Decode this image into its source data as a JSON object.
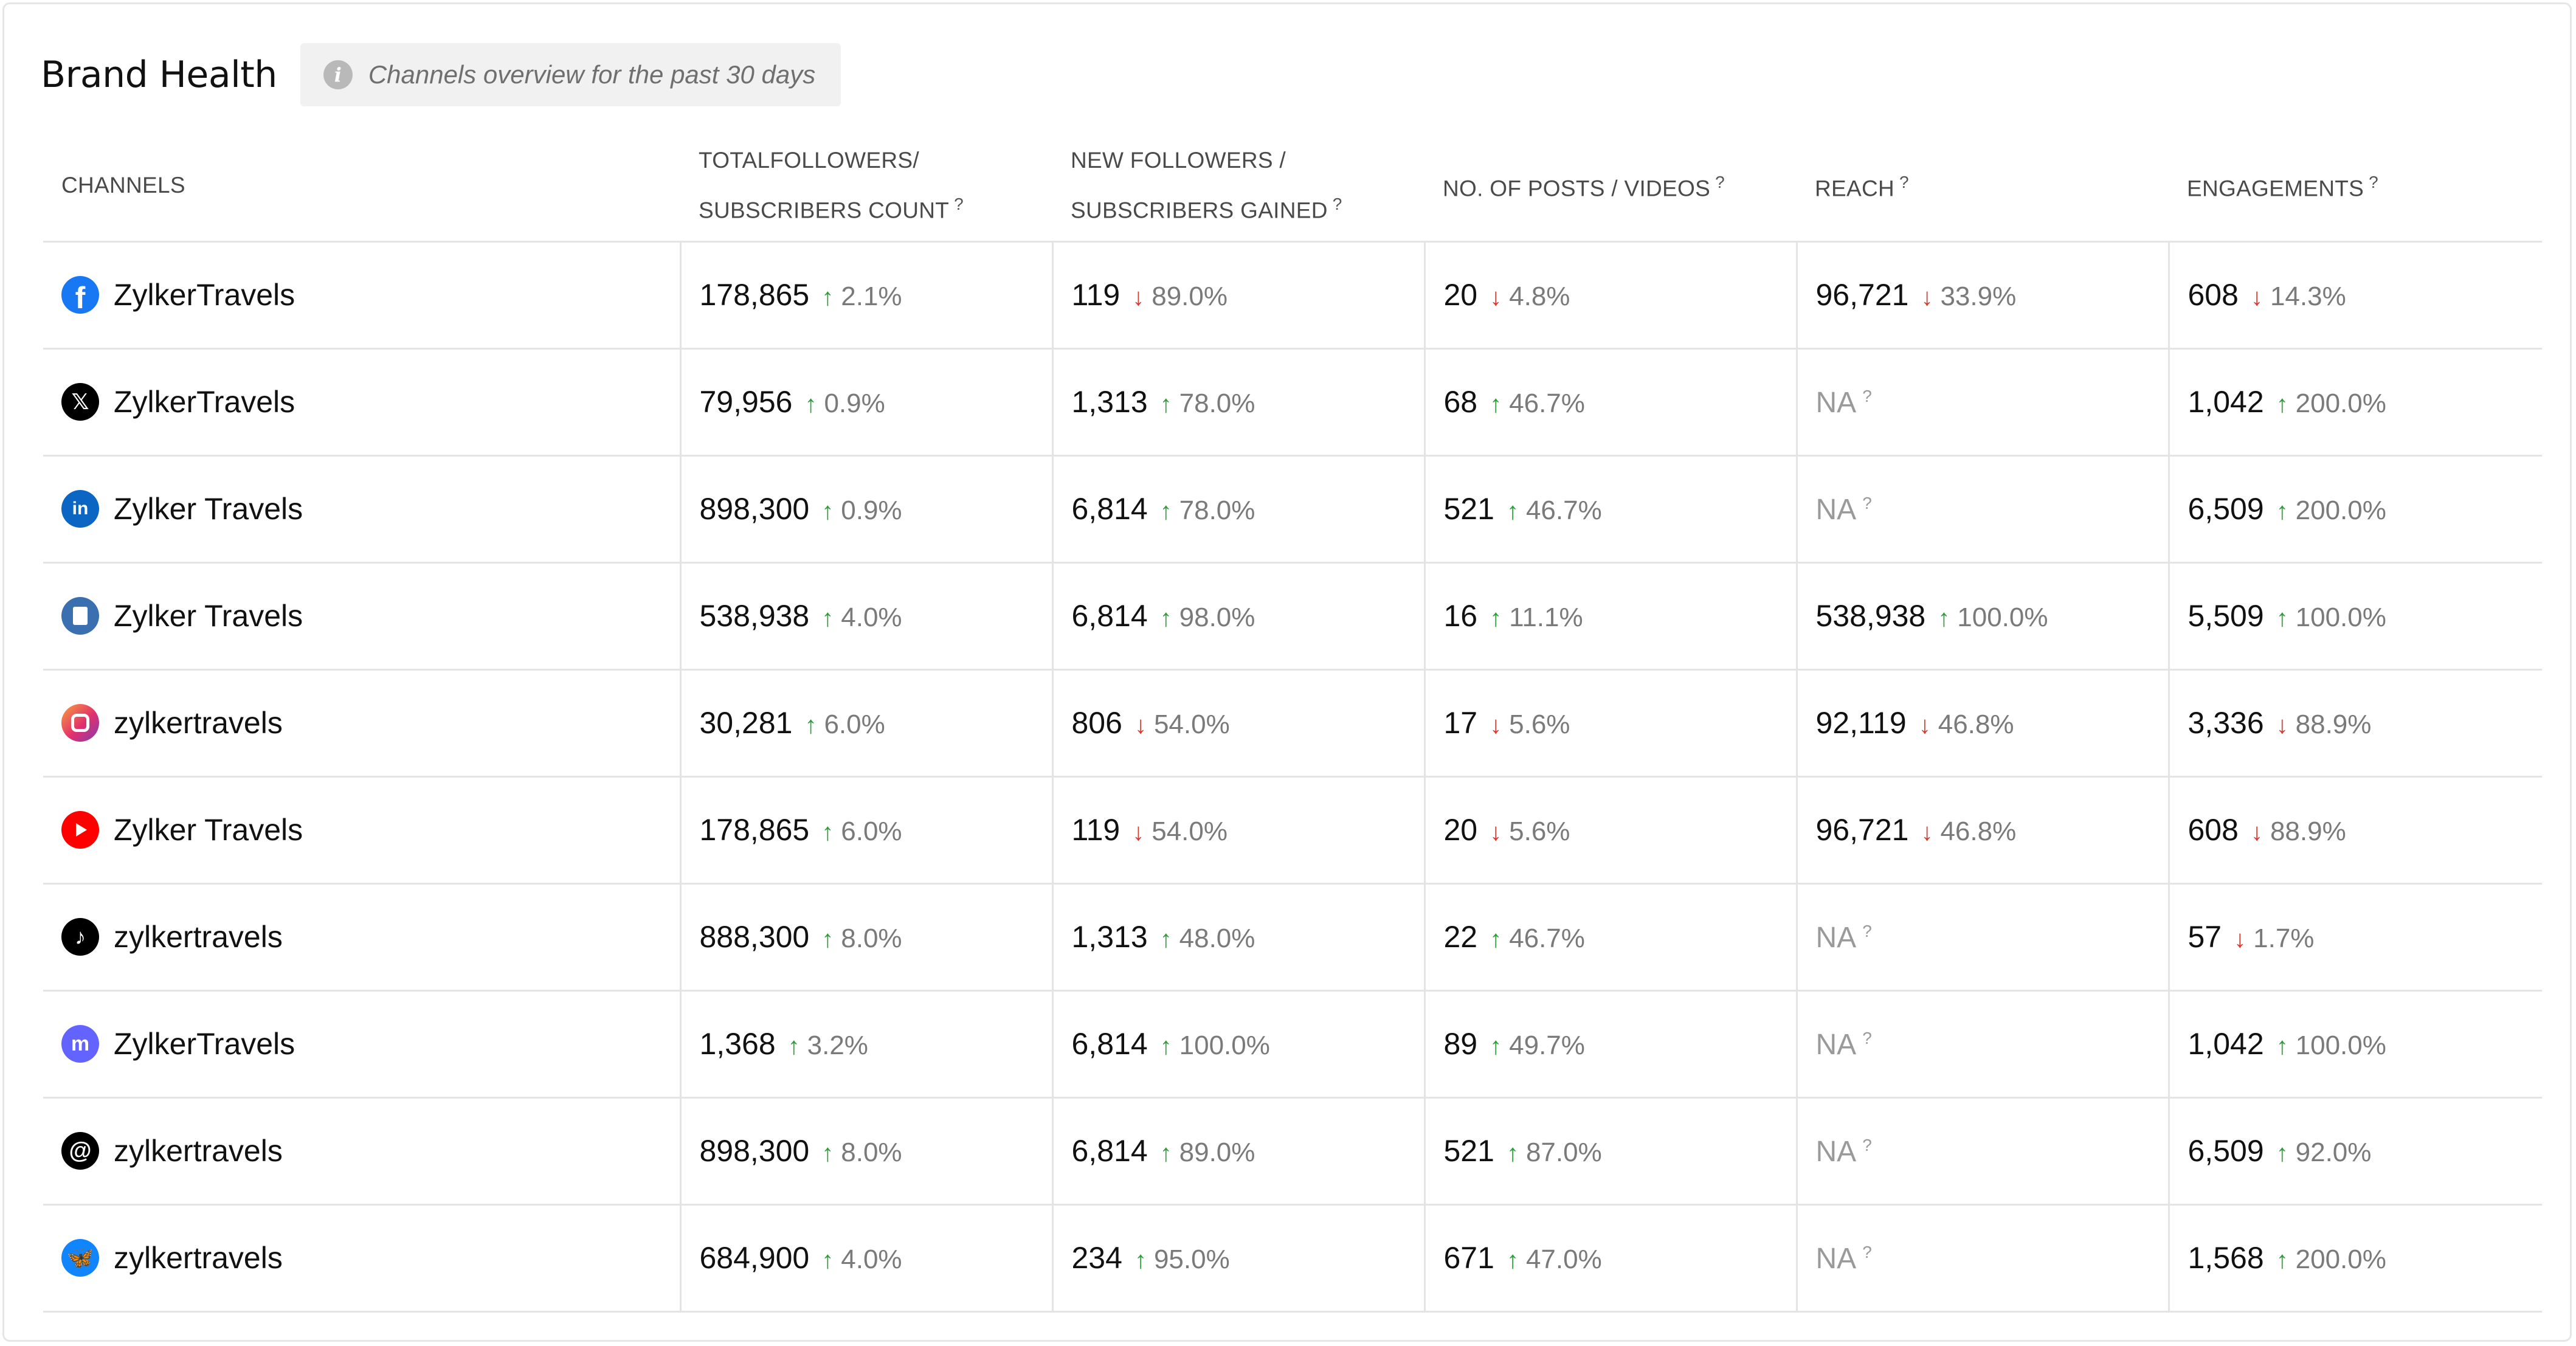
{
  "header": {
    "title": "Brand Health",
    "info": "Channels overview for the past 30 days"
  },
  "columns": [
    {
      "line1": "CHANNELS",
      "line2": ""
    },
    {
      "line1": "TOTALFOLLOWERS/",
      "line2": "SUBSCRIBERS COUNT",
      "help": "?"
    },
    {
      "line1": "NEW FOLLOWERS /",
      "line2": "SUBSCRIBERS GAINED",
      "help": "?"
    },
    {
      "line1": "NO. OF POSTS / VIDEOS",
      "line2": "",
      "help": "?"
    },
    {
      "line1": "REACH",
      "line2": "",
      "help": "?"
    },
    {
      "line1": "ENGAGEMENTS",
      "line2": "",
      "help": "?"
    }
  ],
  "icons": {
    "facebook": "facebook-icon",
    "x": "x-icon",
    "linkedin": "linkedin-icon",
    "gbp": "google-business-icon",
    "instagram": "instagram-icon",
    "youtube": "youtube-icon",
    "tiktok": "tiktok-icon",
    "mastodon": "mastodon-icon",
    "threads": "threads-icon",
    "bluesky": "bluesky-icon"
  },
  "colors": {
    "up": "#2e9e3a",
    "down": "#d63a2f",
    "na": "#9a9a9a"
  },
  "rows": [
    {
      "channel": "ZylkerTravels",
      "icon": "facebook",
      "followers": {
        "value": "178,865",
        "dir": "up",
        "pct": "2.1%"
      },
      "gained": {
        "value": "119",
        "dir": "down",
        "pct": "89.0%"
      },
      "posts": {
        "value": "20",
        "dir": "down",
        "pct": "4.8%"
      },
      "reach": {
        "value": "96,721",
        "dir": "down",
        "pct": "33.9%"
      },
      "engagements": {
        "value": "608",
        "dir": "down",
        "pct": "14.3%"
      }
    },
    {
      "channel": "ZylkerTravels",
      "icon": "x",
      "followers": {
        "value": "79,956",
        "dir": "up",
        "pct": "0.9%"
      },
      "gained": {
        "value": "1,313",
        "dir": "up",
        "pct": "78.0%"
      },
      "posts": {
        "value": "68",
        "dir": "up",
        "pct": "46.7%"
      },
      "reach": {
        "na": "NA"
      },
      "engagements": {
        "value": "1,042",
        "dir": "up",
        "pct": "200.0%"
      }
    },
    {
      "channel": "Zylker Travels",
      "icon": "linkedin",
      "followers": {
        "value": "898,300",
        "dir": "up",
        "pct": "0.9%"
      },
      "gained": {
        "value": "6,814",
        "dir": "up",
        "pct": "78.0%"
      },
      "posts": {
        "value": "521",
        "dir": "up",
        "pct": "46.7%"
      },
      "reach": {
        "na": "NA"
      },
      "engagements": {
        "value": "6,509",
        "dir": "up",
        "pct": "200.0%"
      }
    },
    {
      "channel": "Zylker Travels",
      "icon": "gbp",
      "followers": {
        "value": "538,938",
        "dir": "up",
        "pct": "4.0%"
      },
      "gained": {
        "value": "6,814",
        "dir": "up",
        "pct": "98.0%"
      },
      "posts": {
        "value": "16",
        "dir": "up",
        "pct": "11.1%"
      },
      "reach": {
        "value": "538,938",
        "dir": "up",
        "pct": "100.0%"
      },
      "engagements": {
        "value": "5,509",
        "dir": "up",
        "pct": "100.0%"
      }
    },
    {
      "channel": "zylkertravels",
      "icon": "instagram",
      "followers": {
        "value": "30,281",
        "dir": "up",
        "pct": "6.0%"
      },
      "gained": {
        "value": "806",
        "dir": "down",
        "pct": "54.0%"
      },
      "posts": {
        "value": "17",
        "dir": "down",
        "pct": "5.6%"
      },
      "reach": {
        "value": "92,119",
        "dir": "down",
        "pct": "46.8%"
      },
      "engagements": {
        "value": "3,336",
        "dir": "down",
        "pct": "88.9%"
      }
    },
    {
      "channel": "Zylker Travels",
      "icon": "youtube",
      "followers": {
        "value": "178,865",
        "dir": "up",
        "pct": "6.0%"
      },
      "gained": {
        "value": "119",
        "dir": "down",
        "pct": "54.0%"
      },
      "posts": {
        "value": "20",
        "dir": "down",
        "pct": "5.6%"
      },
      "reach": {
        "value": "96,721",
        "dir": "down",
        "pct": "46.8%"
      },
      "engagements": {
        "value": "608",
        "dir": "down",
        "pct": "88.9%"
      }
    },
    {
      "channel": "zylkertravels",
      "icon": "tiktok",
      "followers": {
        "value": "888,300",
        "dir": "up",
        "pct": "8.0%"
      },
      "gained": {
        "value": "1,313",
        "dir": "up",
        "pct": "48.0%"
      },
      "posts": {
        "value": "22",
        "dir": "up",
        "pct": "46.7%"
      },
      "reach": {
        "na": "NA"
      },
      "engagements": {
        "value": "57",
        "dir": "down",
        "pct": "1.7%"
      }
    },
    {
      "channel": "ZylkerTravels",
      "icon": "mastodon",
      "followers": {
        "value": "1,368",
        "dir": "up",
        "pct": "3.2%"
      },
      "gained": {
        "value": "6,814",
        "dir": "up",
        "pct": "100.0%"
      },
      "posts": {
        "value": "89",
        "dir": "up",
        "pct": "49.7%"
      },
      "reach": {
        "na": "NA"
      },
      "engagements": {
        "value": "1,042",
        "dir": "up",
        "pct": "100.0%"
      }
    },
    {
      "channel": "zylkertravels",
      "icon": "threads",
      "followers": {
        "value": "898,300",
        "dir": "up",
        "pct": "8.0%"
      },
      "gained": {
        "value": "6,814",
        "dir": "up",
        "pct": "89.0%"
      },
      "posts": {
        "value": "521",
        "dir": "up",
        "pct": "87.0%"
      },
      "reach": {
        "na": "NA"
      },
      "engagements": {
        "value": "6,509",
        "dir": "up",
        "pct": "92.0%"
      }
    },
    {
      "channel": "zylkertravels",
      "icon": "bluesky",
      "followers": {
        "value": "684,900",
        "dir": "up",
        "pct": "4.0%"
      },
      "gained": {
        "value": "234",
        "dir": "up",
        "pct": "95.0%"
      },
      "posts": {
        "value": "671",
        "dir": "up",
        "pct": "47.0%"
      },
      "reach": {
        "na": "NA"
      },
      "engagements": {
        "value": "1,568",
        "dir": "up",
        "pct": "200.0%"
      }
    }
  ]
}
